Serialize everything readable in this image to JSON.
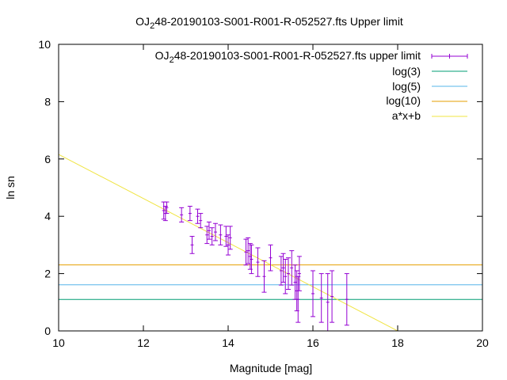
{
  "chart_data": {
    "type": "scatter",
    "title": {
      "prefix": "OJ",
      "sub": "2",
      "rest": "48-20190103-S001-R001-R-052527.fts Upper limit"
    },
    "xlabel": "Magnitude [mag]",
    "ylabel": "ln sn",
    "xlim": [
      10,
      20
    ],
    "ylim": [
      0,
      10
    ],
    "xticks": [
      10,
      12,
      14,
      16,
      18,
      20
    ],
    "yticks": [
      0,
      2,
      4,
      6,
      8,
      10
    ],
    "legend_position": "top-right",
    "grid": false,
    "series": [
      {
        "name": {
          "prefix": "OJ",
          "sub": "2",
          "rest": "48-20190103-S001-R001-R-052527.fts upper limit"
        },
        "kind": "errorbars",
        "color": "#9400d3",
        "points": [
          {
            "x": 12.48,
            "y": 4.2,
            "e": 0.3
          },
          {
            "x": 12.52,
            "y": 4.1,
            "e": 0.25
          },
          {
            "x": 12.55,
            "y": 4.3,
            "e": 0.2
          },
          {
            "x": 12.9,
            "y": 4.05,
            "e": 0.25
          },
          {
            "x": 13.1,
            "y": 4.1,
            "e": 0.25
          },
          {
            "x": 13.15,
            "y": 3.0,
            "e": 0.3
          },
          {
            "x": 13.28,
            "y": 4.0,
            "e": 0.25
          },
          {
            "x": 13.35,
            "y": 3.85,
            "e": 0.25
          },
          {
            "x": 13.5,
            "y": 3.35,
            "e": 0.3
          },
          {
            "x": 13.55,
            "y": 3.5,
            "e": 0.3
          },
          {
            "x": 13.62,
            "y": 3.3,
            "e": 0.3
          },
          {
            "x": 13.7,
            "y": 3.45,
            "e": 0.3
          },
          {
            "x": 13.82,
            "y": 3.35,
            "e": 0.35
          },
          {
            "x": 13.95,
            "y": 3.3,
            "e": 0.35
          },
          {
            "x": 14.0,
            "y": 3.0,
            "e": 0.35
          },
          {
            "x": 14.05,
            "y": 3.25,
            "e": 0.4
          },
          {
            "x": 14.42,
            "y": 2.75,
            "e": 0.45
          },
          {
            "x": 14.47,
            "y": 2.8,
            "e": 0.45
          },
          {
            "x": 14.52,
            "y": 2.6,
            "e": 0.45
          },
          {
            "x": 14.55,
            "y": 2.5,
            "e": 0.5
          },
          {
            "x": 14.7,
            "y": 2.4,
            "e": 0.5
          },
          {
            "x": 14.85,
            "y": 1.9,
            "e": 0.55
          },
          {
            "x": 15.0,
            "y": 2.55,
            "e": 0.45
          },
          {
            "x": 15.25,
            "y": 2.1,
            "e": 0.5
          },
          {
            "x": 15.3,
            "y": 2.2,
            "e": 0.5
          },
          {
            "x": 15.35,
            "y": 1.9,
            "e": 0.6
          },
          {
            "x": 15.42,
            "y": 2.0,
            "e": 0.55
          },
          {
            "x": 15.5,
            "y": 2.2,
            "e": 0.6
          },
          {
            "x": 15.58,
            "y": 1.7,
            "e": 0.6
          },
          {
            "x": 15.62,
            "y": 1.4,
            "e": 0.7
          },
          {
            "x": 15.65,
            "y": 1.1,
            "e": 0.8
          },
          {
            "x": 15.68,
            "y": 2.0,
            "e": 0.6
          },
          {
            "x": 16.0,
            "y": 1.3,
            "e": 0.8
          },
          {
            "x": 16.2,
            "y": 1.15,
            "e": 0.85
          },
          {
            "x": 16.35,
            "y": 1.0,
            "e": 1.0
          },
          {
            "x": 16.45,
            "y": 1.2,
            "e": 0.9
          },
          {
            "x": 16.8,
            "y": 1.1,
            "e": 0.9
          }
        ]
      },
      {
        "name": "log(3)",
        "kind": "hline",
        "y": 1.0986,
        "color": "#009e73"
      },
      {
        "name": "log(5)",
        "kind": "hline",
        "y": 1.6094,
        "color": "#56b4e9"
      },
      {
        "name": "log(10)",
        "kind": "hline",
        "y": 2.3026,
        "color": "#e69f00"
      },
      {
        "name": "a*x+b",
        "kind": "line",
        "slope": -0.77,
        "intercept": 13.86,
        "color": "#f0e442"
      }
    ]
  }
}
